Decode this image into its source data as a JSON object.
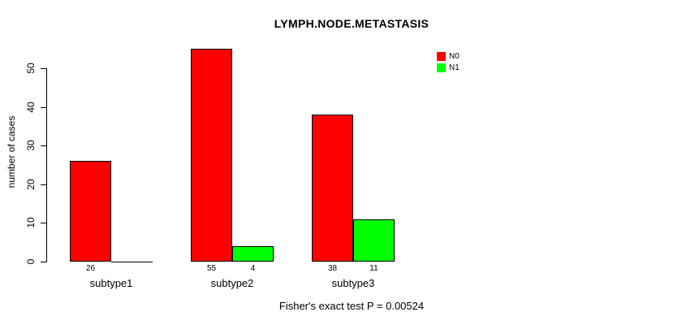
{
  "chart_data": {
    "type": "bar",
    "title": "LYMPH.NODE.METASTASIS",
    "ylabel": "number of cases",
    "xlabel": "",
    "categories": [
      "subtype1",
      "subtype2",
      "subtype3"
    ],
    "series": [
      {
        "name": "N0",
        "color": "#ff0000",
        "values": [
          26,
          55,
          38
        ]
      },
      {
        "name": "N1",
        "color": "#00ff00",
        "values": [
          0,
          4,
          11
        ]
      }
    ],
    "bar_value_labels": [
      "26",
      "55",
      "4",
      "38",
      "11"
    ],
    "ylim": [
      0,
      55
    ],
    "yticks": [
      0,
      10,
      20,
      30,
      40,
      50
    ],
    "grid": false,
    "legend_position": "top-right",
    "note": "Fisher's exact test P = 0.00524"
  }
}
